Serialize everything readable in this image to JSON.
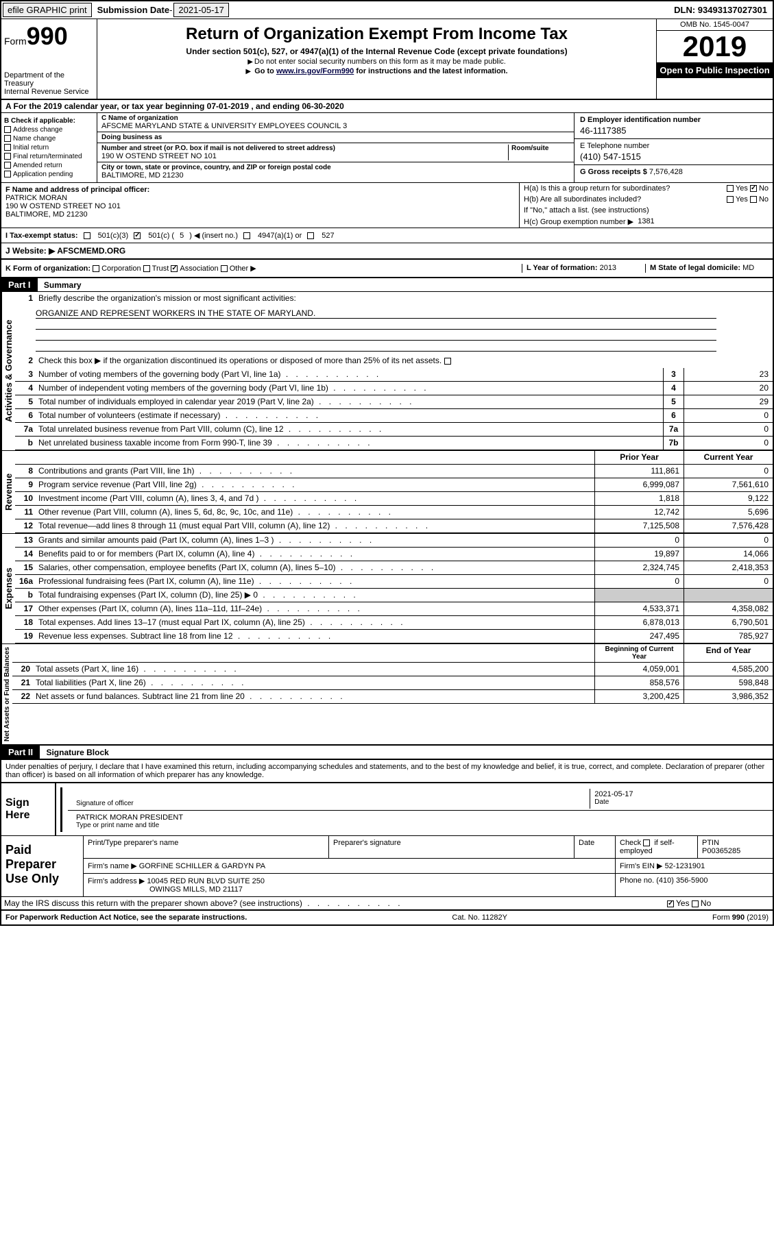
{
  "topbar": {
    "efile": "efile GRAPHIC print",
    "sublabel": "Submission Date",
    "subdate": "2021-05-17",
    "dln": "DLN: 93493137027301"
  },
  "header": {
    "form_word": "Form",
    "form_no": "990",
    "dept": "Department of the Treasury\nInternal Revenue Service",
    "title": "Return of Organization Exempt From Income Tax",
    "sub": "Under section 501(c), 527, or 4947(a)(1) of the Internal Revenue Code (except private foundations)",
    "note1": "Do not enter social security numbers on this form as it may be made public.",
    "note2_pre": "Go to ",
    "note2_link": "www.irs.gov/Form990",
    "note2_post": " for instructions and the latest information.",
    "omb": "OMB No. 1545-0047",
    "year": "2019",
    "open": "Open to Public Inspection"
  },
  "rowA": "A For the 2019 calendar year, or tax year beginning 07-01-2019    , and ending 06-30-2020",
  "B": {
    "label": "B Check if applicable:",
    "items": [
      "Address change",
      "Name change",
      "Initial return",
      "Final return/terminated",
      "Amended return",
      "Application pending"
    ]
  },
  "C": {
    "name_lbl": "C Name of organization",
    "name": "AFSCME MARYLAND STATE & UNIVERSITY EMPLOYEES COUNCIL 3",
    "dba_lbl": "Doing business as",
    "dba": "",
    "street_lbl": "Number and street (or P.O. box if mail is not delivered to street address)",
    "room_lbl": "Room/suite",
    "street": "190 W OSTEND STREET NO 101",
    "city_lbl": "City or town, state or province, country, and ZIP or foreign postal code",
    "city": "BALTIMORE, MD  21230"
  },
  "D": {
    "lbl": "D Employer identification number",
    "val": "46-1117385"
  },
  "E": {
    "lbl": "E Telephone number",
    "val": "(410) 547-1515"
  },
  "G": {
    "lbl": "G Gross receipts $",
    "val": "7,576,428"
  },
  "F": {
    "lbl": "F  Name and address of principal officer:",
    "name": "PATRICK MORAN",
    "addr1": "190 W OSTEND STREET NO 101",
    "addr2": "BALTIMORE, MD  21230"
  },
  "H": {
    "a": "H(a)  Is this a group return for subordinates?",
    "a_yes": "Yes",
    "a_no": "No",
    "b": "H(b)  Are all subordinates included?",
    "b_note": "If \"No,\" attach a list. (see instructions)",
    "c_lbl": "H(c)  Group exemption number ▶",
    "c_val": "1381"
  },
  "I": {
    "lbl": "I  Tax-exempt status:",
    "opt1": "501(c)(3)",
    "opt2_pre": "501(c) (",
    "opt2_val": "5",
    "opt2_post": ") ◀ (insert no.)",
    "opt3": "4947(a)(1) or",
    "opt4": "527"
  },
  "J": {
    "lbl": "J  Website: ▶",
    "val": "AFSCMEMD.ORG"
  },
  "K": {
    "lbl": "K Form of organization:",
    "opts": [
      "Corporation",
      "Trust",
      "Association",
      "Other ▶"
    ],
    "checked_idx": 2
  },
  "L": {
    "lbl": "L Year of formation:",
    "val": "2013"
  },
  "M": {
    "lbl": "M State of legal domicile:",
    "val": "MD"
  },
  "part1": {
    "hdr": "Part I",
    "title": "Summary"
  },
  "summary": {
    "line1_lbl": "Briefly describe the organization's mission or most significant activities:",
    "line1_val": "ORGANIZE AND REPRESENT WORKERS IN THE STATE OF MARYLAND.",
    "line2": "Check this box ▶  if the organization discontinued its operations or disposed of more than 25% of its net assets.",
    "rows_gov": [
      {
        "n": "3",
        "d": "Number of voting members of the governing body (Part VI, line 1a)",
        "b": "3",
        "v": "23"
      },
      {
        "n": "4",
        "d": "Number of independent voting members of the governing body (Part VI, line 1b)",
        "b": "4",
        "v": "20"
      },
      {
        "n": "5",
        "d": "Total number of individuals employed in calendar year 2019 (Part V, line 2a)",
        "b": "5",
        "v": "29"
      },
      {
        "n": "6",
        "d": "Total number of volunteers (estimate if necessary)",
        "b": "6",
        "v": "0"
      },
      {
        "n": "7a",
        "d": "Total unrelated business revenue from Part VIII, column (C), line 12",
        "b": "7a",
        "v": "0"
      },
      {
        "n": "b",
        "d": "Net unrelated business taxable income from Form 990-T, line 39",
        "b": "7b",
        "v": "0"
      }
    ],
    "col_prior": "Prior Year",
    "col_current": "Current Year",
    "rows_rev": [
      {
        "n": "8",
        "d": "Contributions and grants (Part VIII, line 1h)",
        "p": "111,861",
        "c": "0"
      },
      {
        "n": "9",
        "d": "Program service revenue (Part VIII, line 2g)",
        "p": "6,999,087",
        "c": "7,561,610"
      },
      {
        "n": "10",
        "d": "Investment income (Part VIII, column (A), lines 3, 4, and 7d )",
        "p": "1,818",
        "c": "9,122"
      },
      {
        "n": "11",
        "d": "Other revenue (Part VIII, column (A), lines 5, 6d, 8c, 9c, 10c, and 11e)",
        "p": "12,742",
        "c": "5,696"
      },
      {
        "n": "12",
        "d": "Total revenue—add lines 8 through 11 (must equal Part VIII, column (A), line 12)",
        "p": "7,125,508",
        "c": "7,576,428"
      }
    ],
    "rows_exp": [
      {
        "n": "13",
        "d": "Grants and similar amounts paid (Part IX, column (A), lines 1–3 )",
        "p": "0",
        "c": "0"
      },
      {
        "n": "14",
        "d": "Benefits paid to or for members (Part IX, column (A), line 4)",
        "p": "19,897",
        "c": "14,066"
      },
      {
        "n": "15",
        "d": "Salaries, other compensation, employee benefits (Part IX, column (A), lines 5–10)",
        "p": "2,324,745",
        "c": "2,418,353"
      },
      {
        "n": "16a",
        "d": "Professional fundraising fees (Part IX, column (A), line 11e)",
        "p": "0",
        "c": "0"
      },
      {
        "n": "b",
        "d": "Total fundraising expenses (Part IX, column (D), line 25) ▶ 0",
        "p": "",
        "c": ""
      },
      {
        "n": "17",
        "d": "Other expenses (Part IX, column (A), lines 11a–11d, 11f–24e)",
        "p": "4,533,371",
        "c": "4,358,082"
      },
      {
        "n": "18",
        "d": "Total expenses. Add lines 13–17 (must equal Part IX, column (A), line 25)",
        "p": "6,878,013",
        "c": "6,790,501"
      },
      {
        "n": "19",
        "d": "Revenue less expenses. Subtract line 18 from line 12",
        "p": "247,495",
        "c": "785,927"
      }
    ],
    "col_begin": "Beginning of Current Year",
    "col_end": "End of Year",
    "rows_net": [
      {
        "n": "20",
        "d": "Total assets (Part X, line 16)",
        "p": "4,059,001",
        "c": "4,585,200"
      },
      {
        "n": "21",
        "d": "Total liabilities (Part X, line 26)",
        "p": "858,576",
        "c": "598,848"
      },
      {
        "n": "22",
        "d": "Net assets or fund balances. Subtract line 21 from line 20",
        "p": "3,200,425",
        "c": "3,986,352"
      }
    ],
    "vlabels": {
      "gov": "Activities & Governance",
      "rev": "Revenue",
      "exp": "Expenses",
      "net": "Net Assets or Fund Balances"
    }
  },
  "part2": {
    "hdr": "Part II",
    "title": "Signature Block"
  },
  "declare": "Under penalties of perjury, I declare that I have examined this return, including accompanying schedules and statements, and to the best of my knowledge and belief, it is true, correct, and complete. Declaration of preparer (other than officer) is based on all information of which preparer has any knowledge.",
  "sign": {
    "here": "Sign Here",
    "sig_lbl": "Signature of officer",
    "date_lbl": "Date",
    "date_val": "2021-05-17",
    "name": "PATRICK MORAN  PRESIDENT",
    "name_lbl": "Type or print name and title"
  },
  "prep": {
    "title": "Paid Preparer Use Only",
    "h1": "Print/Type preparer's name",
    "h2": "Preparer's signature",
    "h3": "Date",
    "h4_pre": "Check",
    "h4_post": "if self-employed",
    "h5": "PTIN",
    "ptin": "P00365285",
    "firm_lbl": "Firm's name   ▶",
    "firm": "GORFINE SCHILLER & GARDYN PA",
    "ein_lbl": "Firm's EIN ▶",
    "ein": "52-1231901",
    "addr_lbl": "Firm's address ▶",
    "addr1": "10045 RED RUN BLVD SUITE 250",
    "addr2": "OWINGS MILLS, MD  21117",
    "phone_lbl": "Phone no.",
    "phone": "(410) 356-5900"
  },
  "discuss": {
    "q": "May the IRS discuss this return with the preparer shown above? (see instructions)",
    "yes": "Yes",
    "no": "No"
  },
  "footer": {
    "left": "For Paperwork Reduction Act Notice, see the separate instructions.",
    "mid": "Cat. No. 11282Y",
    "right": "Form 990 (2019)"
  }
}
